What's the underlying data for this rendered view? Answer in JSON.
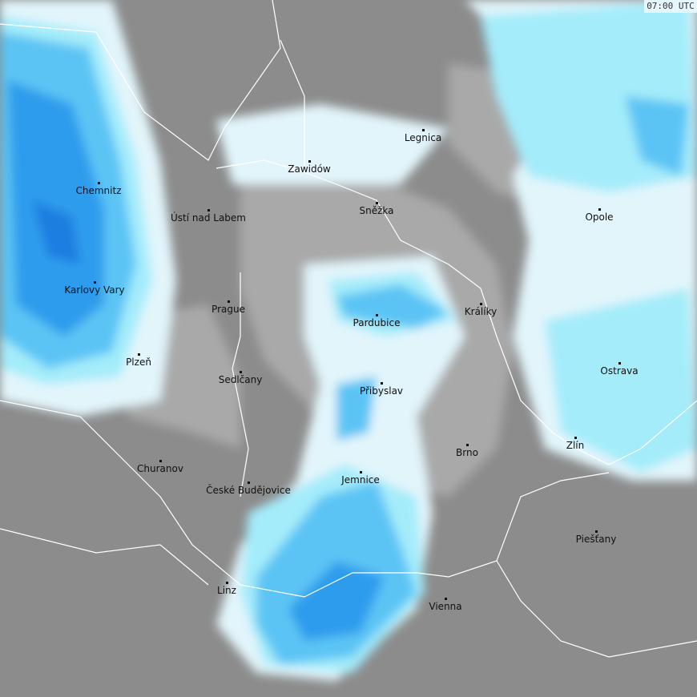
{
  "timestamp": "07:00 UTC",
  "colors": {
    "base": "#8c8c8c",
    "light_gray": "#a9a9a9",
    "very_light": "#e2f5fb",
    "cyan": "#a4ecfa",
    "light_blue": "#5cc4f4",
    "blue": "#2f9cec",
    "dark_blue": "#1f7ee0",
    "border": "#ffffff"
  },
  "cities": [
    "Chemnitz",
    "Ústí nad Labem",
    "Karlovy Vary",
    "Prague",
    "Plzeň",
    "Sedlčany",
    "Churanov",
    "České Budějovice",
    "Linz",
    "Zawidów",
    "Legnica",
    "Sněžka",
    "Opole",
    "Pardubice",
    "Králíky",
    "Přibyslav",
    "Ostrava",
    "Brno",
    "Zlín",
    "Jemnice",
    "Piešťany",
    "Vienna"
  ]
}
